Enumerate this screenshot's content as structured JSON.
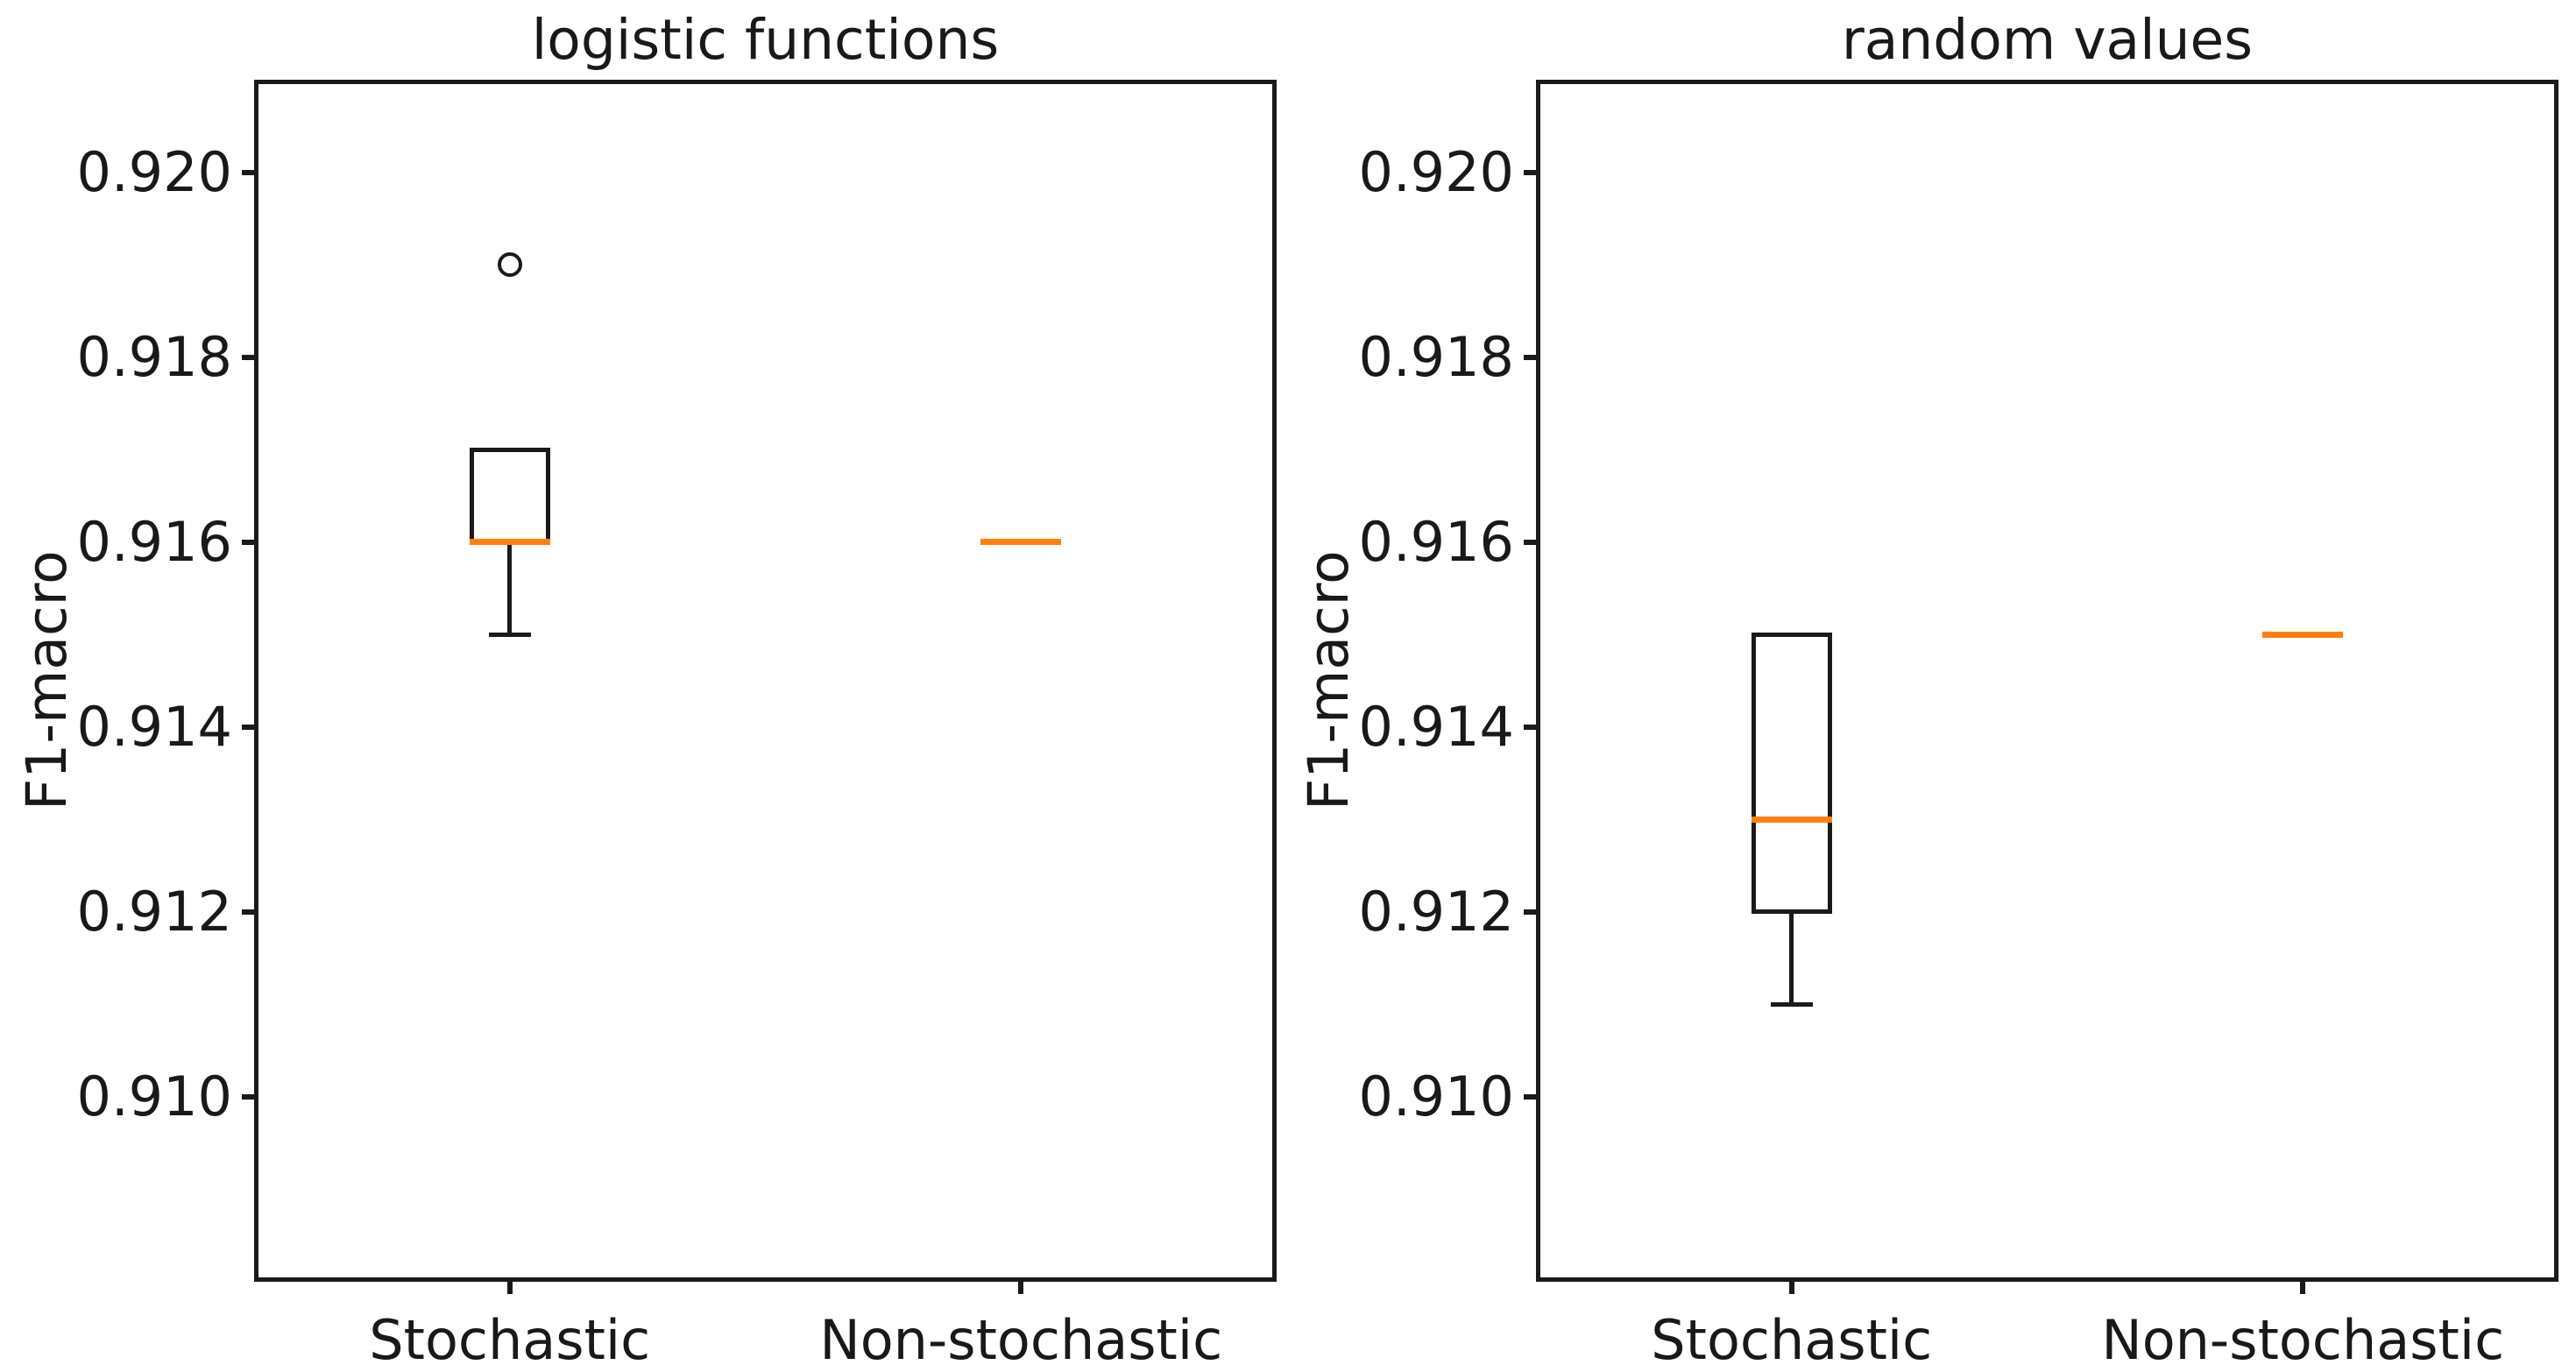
{
  "figure": {
    "background": "#ffffff"
  },
  "colors": {
    "line": "#1a1a1a",
    "median": "#ff7f0e",
    "text": "#191919"
  },
  "chart_data": [
    {
      "type": "boxplot",
      "title": "logistic functions",
      "xlabel": "",
      "ylabel": "F1-macro",
      "categories": [
        "Stochastic",
        "Non-stochastic"
      ],
      "ylim": [
        0.908,
        0.921
      ],
      "ytick_values": [
        0.91,
        0.912,
        0.914,
        0.916,
        0.918,
        0.92
      ],
      "ytick_labels": [
        "0.910",
        "0.912",
        "0.914",
        "0.916",
        "0.918",
        "0.920"
      ],
      "grid": false,
      "legend": "none",
      "series": [
        {
          "name": "Stochastic",
          "q1": 0.916,
          "median": 0.916,
          "q3": 0.917,
          "whisker_low": 0.915,
          "whisker_high": 0.917,
          "outliers": [
            0.919
          ]
        },
        {
          "name": "Non-stochastic",
          "q1": 0.916,
          "median": 0.916,
          "q3": 0.916,
          "whisker_low": 0.916,
          "whisker_high": 0.916,
          "outliers": []
        }
      ]
    },
    {
      "type": "boxplot",
      "title": "random values",
      "xlabel": "",
      "ylabel": "F1-macro",
      "categories": [
        "Stochastic",
        "Non-stochastic"
      ],
      "ylim": [
        0.908,
        0.921
      ],
      "ytick_values": [
        0.91,
        0.912,
        0.914,
        0.916,
        0.918,
        0.92
      ],
      "ytick_labels": [
        "0.910",
        "0.912",
        "0.914",
        "0.916",
        "0.918",
        "0.920"
      ],
      "grid": false,
      "legend": "none",
      "series": [
        {
          "name": "Stochastic",
          "q1": 0.912,
          "median": 0.913,
          "q3": 0.915,
          "whisker_low": 0.911,
          "whisker_high": 0.915,
          "outliers": []
        },
        {
          "name": "Non-stochastic",
          "q1": 0.915,
          "median": 0.915,
          "q3": 0.915,
          "whisker_low": 0.915,
          "whisker_high": 0.915,
          "outliers": []
        }
      ]
    }
  ]
}
